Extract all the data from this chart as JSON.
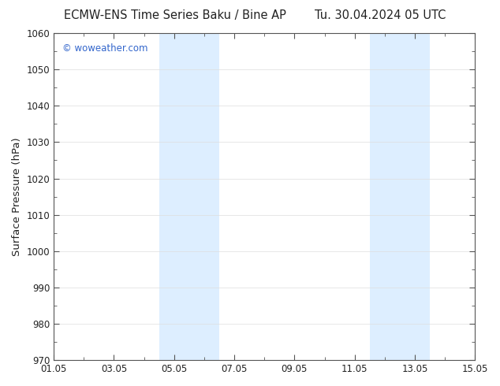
{
  "title_left": "ECMW-ENS Time Series Baku / Bine AP",
  "title_right": "Tu. 30.04.2024 05 UTC",
  "ylabel": "Surface Pressure (hPa)",
  "ylim": [
    970,
    1060
  ],
  "yticks": [
    970,
    980,
    990,
    1000,
    1010,
    1020,
    1030,
    1040,
    1050,
    1060
  ],
  "xlim": [
    0,
    14
  ],
  "xtick_labels": [
    "01.05",
    "03.05",
    "05.05",
    "07.05",
    "09.05",
    "11.05",
    "13.05",
    "15.05"
  ],
  "xtick_positions": [
    0,
    2,
    4,
    6,
    8,
    10,
    12,
    14
  ],
  "shaded_bands": [
    {
      "x_start": 3.5,
      "x_end": 4.5
    },
    {
      "x_start": 4.5,
      "x_end": 5.5
    },
    {
      "x_start": 10.5,
      "x_end": 11.5
    },
    {
      "x_start": 11.5,
      "x_end": 12.5
    }
  ],
  "shaded_color": "#ddeeff",
  "background_color": "#ffffff",
  "plot_bg_color": "#ffffff",
  "watermark_text": "© woweather.com",
  "watermark_color": "#3366cc",
  "title_color": "#222222",
  "axis_color": "#222222",
  "title_fontsize": 10.5,
  "tick_fontsize": 8.5,
  "ylabel_fontsize": 9.5,
  "grid_color": "#dddddd",
  "spine_color": "#555555",
  "tick_color": "#555555"
}
